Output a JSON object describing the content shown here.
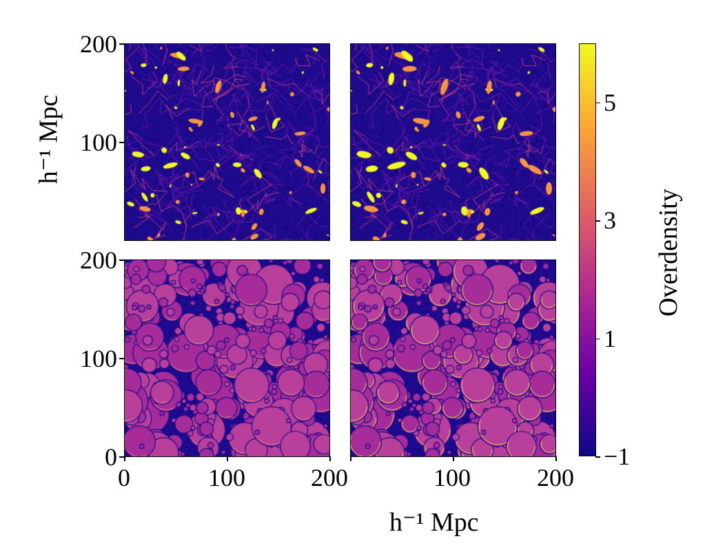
{
  "chart_data": {
    "type": "heatmap",
    "layout": "2x2 panels with shared colorbar",
    "panels": [
      {
        "id": "top-left",
        "style": "filaments"
      },
      {
        "id": "top-right",
        "style": "filaments"
      },
      {
        "id": "bottom-left",
        "style": "bubbles"
      },
      {
        "id": "bottom-right",
        "style": "bubbles"
      }
    ],
    "xlabel": "h⁻¹ Mpc",
    "ylabel": "h⁻¹ Mpc",
    "xlim": [
      0,
      200
    ],
    "ylim": [
      0,
      200
    ],
    "x_ticks": [
      "0",
      "100",
      "200"
    ],
    "y_ticks_top": [
      "100",
      "200"
    ],
    "y_ticks_bottom": [
      "0",
      "100",
      "200"
    ],
    "colorbar": {
      "label": "Overdensity",
      "range": [
        -1,
        6
      ],
      "ticks": [
        -1,
        1,
        3,
        5
      ],
      "tick_labels": [
        "−1",
        "1",
        "3",
        "5"
      ],
      "colormap": "plasma"
    }
  },
  "colors": {
    "plasma": [
      "#0d0887",
      "#6a00a8",
      "#b12a90",
      "#e16462",
      "#fca636",
      "#f0f921"
    ]
  }
}
